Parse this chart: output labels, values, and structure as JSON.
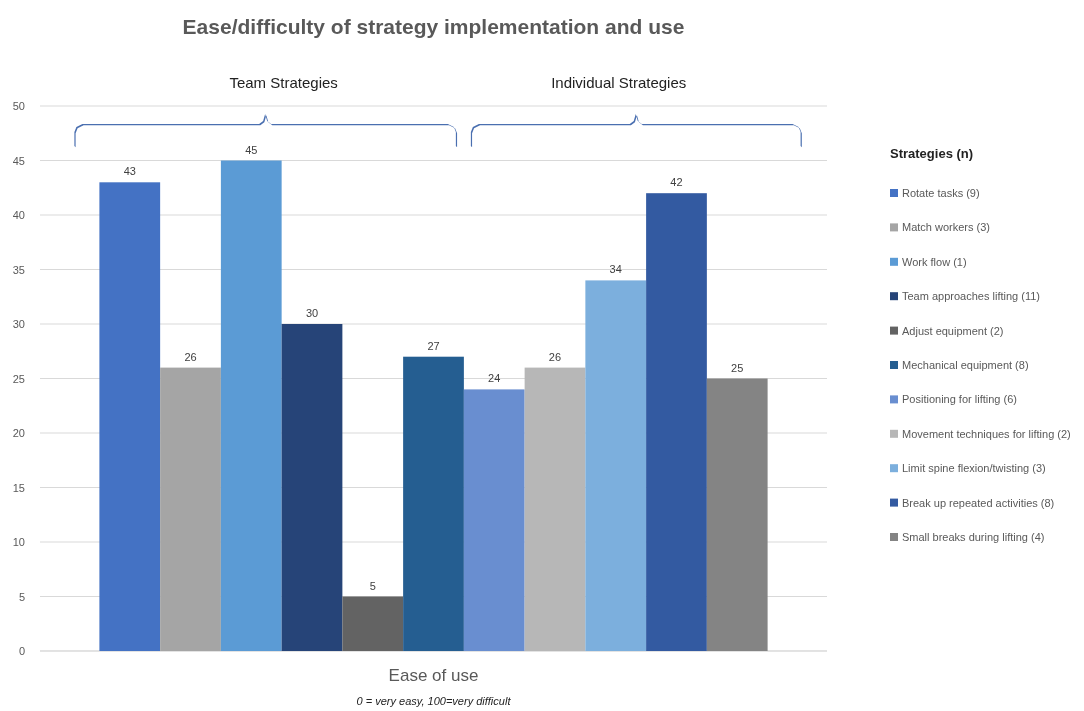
{
  "chart_data": {
    "type": "bar",
    "title": "Ease/difficulty of strategy implementation and use",
    "legend_title": "Strategies (n)",
    "categories": [
      "Ease of use"
    ],
    "series": [
      {
        "name": "Rotate tasks (9)",
        "color": "#4472c4",
        "values": [
          43
        ]
      },
      {
        "name": "Match workers (3)",
        "color": "#a5a5a5",
        "values": [
          26
        ]
      },
      {
        "name": " Work flow (1)",
        "color": "#5b9bd5",
        "values": [
          45
        ]
      },
      {
        "name": "Team approaches lifting (11)",
        "color": "#264478",
        "values": [
          30
        ]
      },
      {
        "name": "Adjust equipment (2)",
        "color": "#636363",
        "values": [
          5
        ]
      },
      {
        "name": "Mechanical equipment (8)",
        "color": "#255e91",
        "values": [
          27
        ]
      },
      {
        "name": "Positioning for lifting (6)",
        "color": "#698ed0",
        "values": [
          24
        ]
      },
      {
        "name": "Movement techniques for lifting (2)",
        "color": "#b7b7b7",
        "values": [
          26
        ]
      },
      {
        "name": "Limit spine flexion/twisting (3)",
        "color": "#7cafdd",
        "values": [
          34
        ]
      },
      {
        "name": "Break up repeated activities (8)",
        "color": "#335aa1",
        "values": [
          42
        ]
      },
      {
        "name": "Small breaks during lifting (4)",
        "color": "#848484",
        "values": [
          25
        ]
      }
    ],
    "ylim": [
      0,
      50
    ],
    "yticks": [
      0,
      5,
      10,
      15,
      20,
      25,
      30,
      35,
      40,
      45,
      50
    ],
    "grid": "y",
    "legend": "right",
    "data_labels": true,
    "annotations": [
      "Team Strategies",
      "Individual Strategies",
      "0 = very easy, 100=very difficult"
    ]
  }
}
